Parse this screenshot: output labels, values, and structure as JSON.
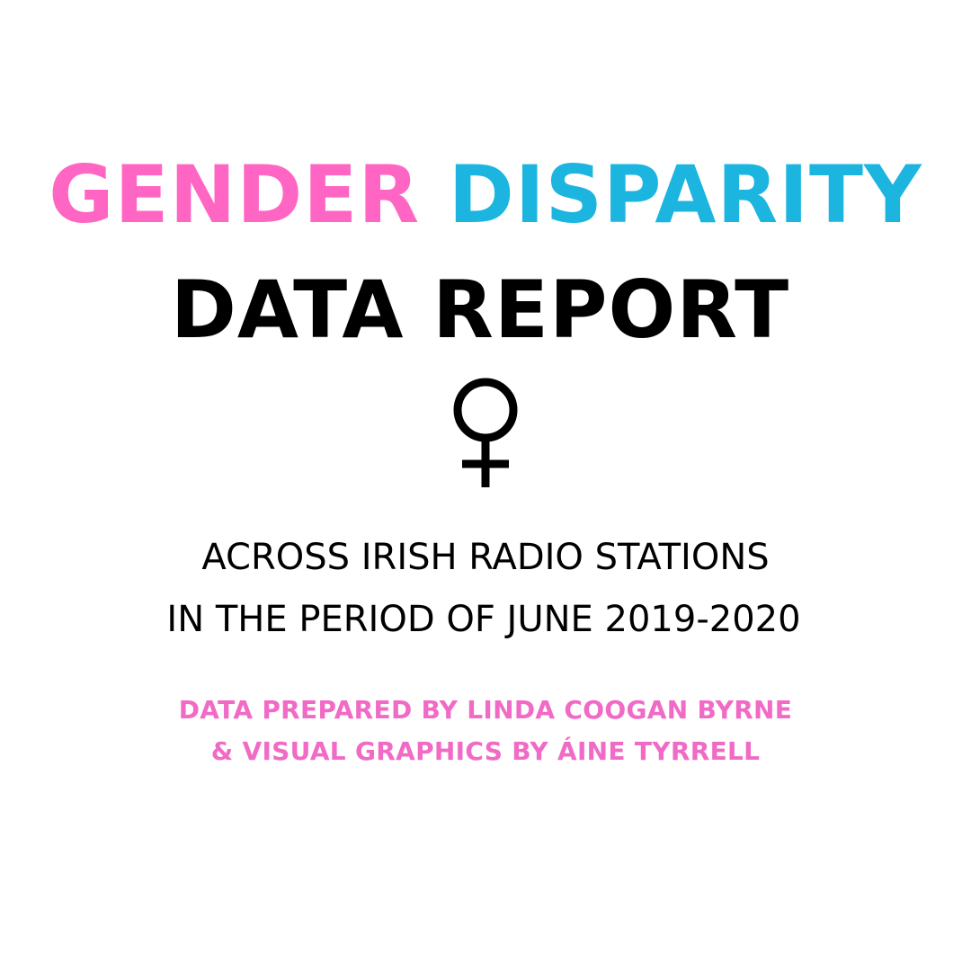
{
  "title": {
    "word_1": "GENDER",
    "word_2": "DISPARITY",
    "line_2": "DATA REPORT"
  },
  "symbol": {
    "icon": "venus-symbol-icon"
  },
  "subtitle": {
    "line_1": "ACROSS IRISH RADIO STATIONS",
    "line_2": "IN THE PERIOD OF JUNE 2019-2020"
  },
  "credits": {
    "line_1": "DATA PREPARED BY LINDA COOGAN BYRNE",
    "line_2": "& VISUAL GRAPHICS BY ÁINE TYRRELL"
  },
  "colors": {
    "pink": "#ff66c4",
    "blue": "#1cb5e0",
    "credit_pink": "#f06ac6",
    "text": "#000000",
    "background": "#ffffff"
  }
}
